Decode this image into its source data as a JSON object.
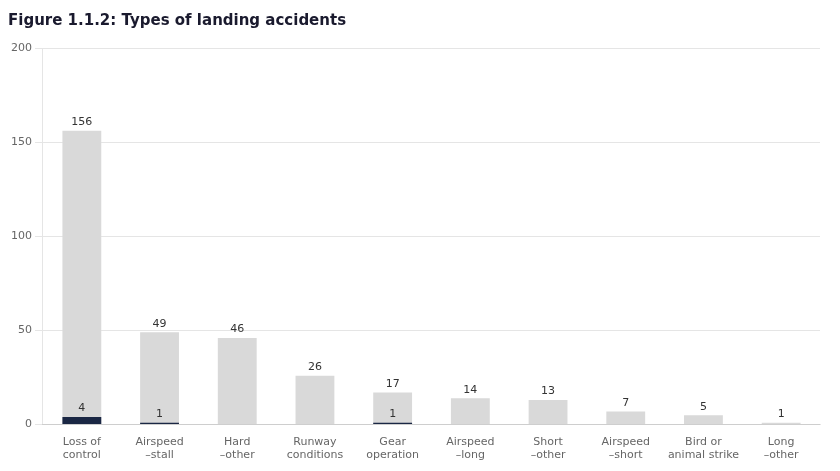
{
  "chart_data": {
    "type": "bar",
    "title": "Figure 1.1.2: Types of landing accidents",
    "categories": [
      "Loss of\ncontrol",
      "Airspeed\n–stall",
      "Hard\n–other",
      "Runway\nconditions",
      "Gear\noperation",
      "Airspeed\n–long",
      "Short\n–other",
      "Airspeed\n–short",
      "Bird or\nanimal strike",
      "Long\n–other"
    ],
    "series": [
      {
        "color": "#d9d9d9",
        "values": [
          156,
          49,
          46,
          26,
          17,
          14,
          13,
          7,
          5,
          1
        ]
      },
      {
        "color": "#1a2744",
        "values": [
          4,
          1,
          0,
          0,
          1,
          0,
          0,
          0,
          0,
          0
        ],
        "value_labels": [
          "4",
          "1",
          null,
          null,
          "1",
          null,
          null,
          null,
          null,
          null
        ]
      }
    ],
    "stacked": false,
    "ylim": [
      0,
      200
    ],
    "yticks": [
      0,
      50,
      100,
      150,
      200
    ],
    "grid": true,
    "data_labels": true
  }
}
